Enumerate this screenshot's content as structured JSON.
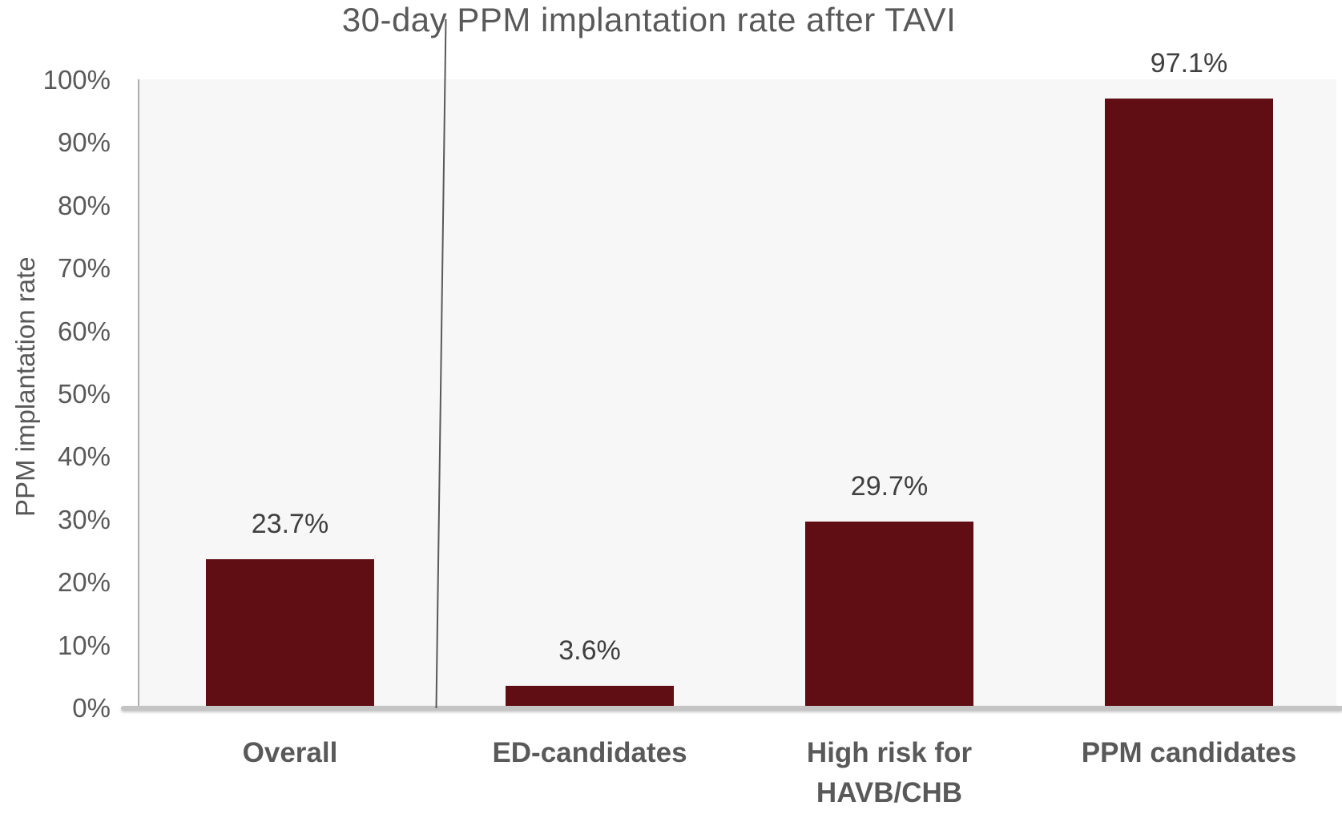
{
  "chart_data": {
    "type": "bar",
    "title": "30-day PPM implantation rate after TAVI",
    "ylabel": "PPM implantation rate",
    "xlabel": "",
    "categories": [
      "Overall",
      "ED-candidates",
      "High risk for HAVB/CHB",
      "PPM candidates"
    ],
    "values": [
      23.7,
      3.6,
      29.7,
      97.1
    ],
    "data_labels": [
      "23.7%",
      "3.6%",
      "29.7%",
      "97.1%"
    ],
    "ylim": [
      0,
      100
    ],
    "ytick_step": 10,
    "yticks": [
      "0%",
      "10%",
      "20%",
      "30%",
      "40%",
      "50%",
      "60%",
      "70%",
      "80%",
      "90%",
      "100%"
    ],
    "grid": false,
    "legend": "none",
    "bar_color": "#600D13",
    "plot_background": "#f7f7f7",
    "text_color": "#595959",
    "divider_between": [
      "Overall",
      "ED-candidates"
    ]
  }
}
